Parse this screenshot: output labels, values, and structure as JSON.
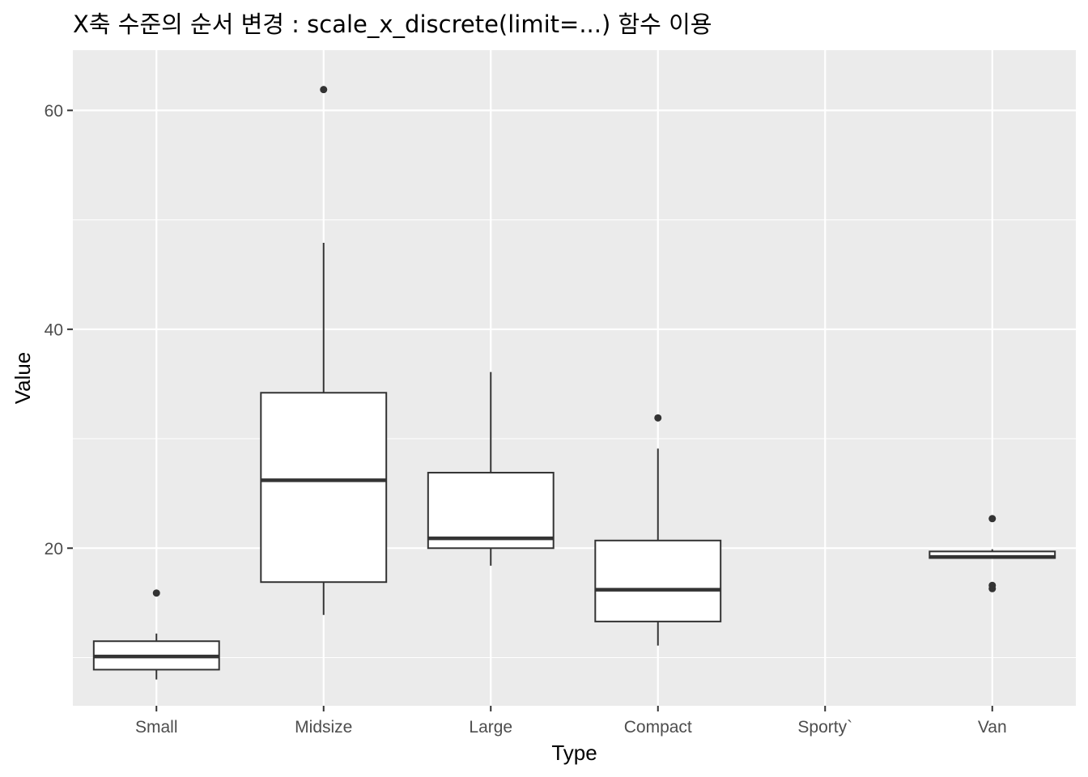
{
  "chart_data": {
    "type": "box",
    "title": "X축 수준의 순서 변경 : scale_x_discrete(limit=...) 함수 이용",
    "xlabel": "Type",
    "ylabel": "Value",
    "ylim": [
      5.6,
      65.5
    ],
    "yticks": [
      20,
      40,
      60
    ],
    "categories": [
      "Small",
      "Midsize",
      "Large",
      "Compact",
      "Sporty`",
      "Van"
    ],
    "boxes": [
      {
        "category": "Small",
        "whisker_low": 8.0,
        "q1": 8.9,
        "median": 10.1,
        "q3": 11.5,
        "whisker_high": 12.2,
        "outliers": [
          15.9
        ]
      },
      {
        "category": "Midsize",
        "whisker_low": 13.9,
        "q1": 16.9,
        "median": 26.2,
        "q3": 34.2,
        "whisker_high": 47.9,
        "outliers": [
          61.9
        ]
      },
      {
        "category": "Large",
        "whisker_low": 18.4,
        "q1": 20.0,
        "median": 20.9,
        "q3": 26.9,
        "whisker_high": 36.1,
        "outliers": []
      },
      {
        "category": "Compact",
        "whisker_low": 11.1,
        "q1": 13.3,
        "median": 16.2,
        "q3": 20.7,
        "whisker_high": 29.1,
        "outliers": [
          31.9
        ]
      },
      {
        "category": "Sporty`",
        "empty": true
      },
      {
        "category": "Van",
        "whisker_low": 19.1,
        "q1": 19.1,
        "median": 19.2,
        "q3": 19.7,
        "whisker_high": 19.9,
        "outliers": [
          22.7,
          16.3,
          16.6
        ]
      }
    ],
    "grid": true,
    "colors": {
      "panel": "#ebebeb",
      "grid": "#ffffff",
      "box_line": "#333333",
      "box_fill": "#ffffff",
      "tick_text": "#4d4d4d"
    }
  }
}
